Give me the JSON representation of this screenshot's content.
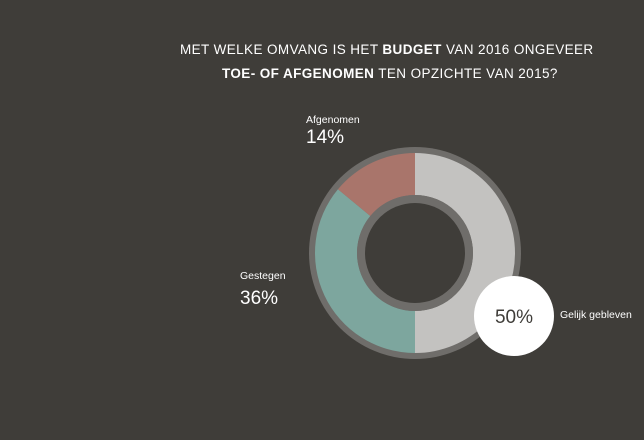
{
  "title": {
    "line1_pre": "MET WELKE OMVANG IS HET ",
    "line1_bold": "BUDGET",
    "line1_post": " VAN 2016 ONGEVEER",
    "line2_bold": "TOE- OF AFGENOMEN",
    "line2_post": " TEN OPZICHTE VAN 2015?"
  },
  "colors": {
    "background": "#3f3d39",
    "outer_ring": "#6f6d6a",
    "center": "#3f3d39",
    "afgenomen": "#a9756b",
    "gestegen": "#7da69e",
    "gelijk": "#c3c2c0",
    "callout": "#ffffff"
  },
  "chart_data": {
    "type": "pie",
    "variant": "donut",
    "slices": [
      {
        "label": "Gelijk gebleven",
        "value": 50,
        "display": "50%"
      },
      {
        "label": "Gestegen",
        "value": 36,
        "display": "36%"
      },
      {
        "label": "Afgenomen",
        "value": 14,
        "display": "14%"
      }
    ],
    "title": "MET WELKE OMVANG IS HET BUDGET VAN 2016 ONGEVEER TOE- OF AFGENOMEN TEN OPZICHTE VAN 2015?"
  }
}
